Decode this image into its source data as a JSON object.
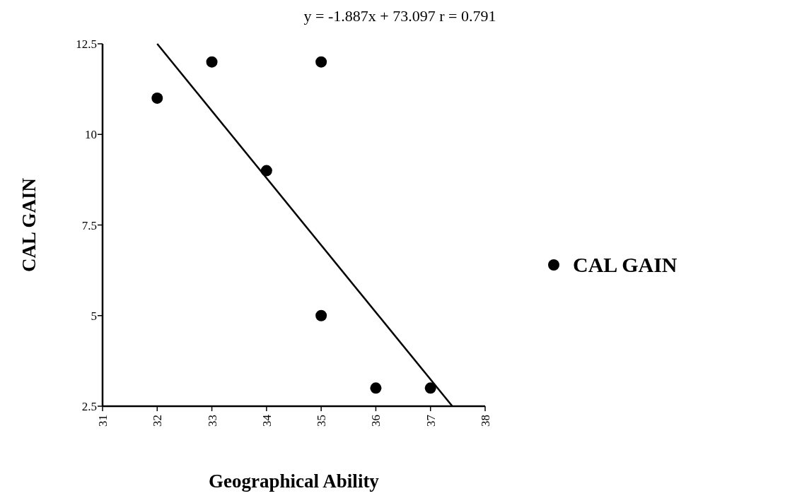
{
  "chart_data": {
    "type": "scatter",
    "title": "y =  -1.887x + 73.097   r = 0.791",
    "xlabel": "Geographical Ability",
    "ylabel": "CAL GAIN",
    "xlim": [
      31,
      38
    ],
    "xticks": [
      31,
      32,
      33,
      34,
      35,
      36,
      37,
      38
    ],
    "ylim": [
      2.5,
      12.5
    ],
    "yticks": [
      2.5,
      5,
      7.5,
      10,
      12.5
    ],
    "grid": false,
    "legend": "right",
    "series": [
      {
        "name": "CAL GAIN",
        "color": "#000000",
        "x": [
          32,
          33,
          34,
          35,
          35,
          36,
          37
        ],
        "values": [
          11,
          12,
          9,
          12,
          5,
          3,
          3
        ],
        "marker": "circle"
      },
      {
        "type": "line",
        "color": "#000000",
        "x": [
          32,
          37.4
        ],
        "values": [
          12.5,
          2.5
        ],
        "marker": "none"
      }
    ]
  }
}
